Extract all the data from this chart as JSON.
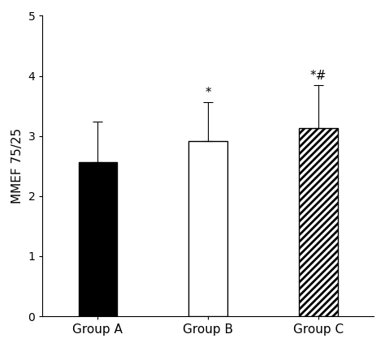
{
  "categories": [
    "Group A",
    "Group B",
    "Group C"
  ],
  "values": [
    2.56,
    2.91,
    3.13
  ],
  "errors": [
    0.68,
    0.65,
    0.72
  ],
  "bar_colors": [
    "black",
    "white",
    "white"
  ],
  "bar_hatches": [
    null,
    null,
    "////"
  ],
  "bar_edgecolors": [
    "black",
    "black",
    "black"
  ],
  "annotations": [
    "",
    "*",
    "*#"
  ],
  "ylabel": "MMEF 75/25",
  "ylim": [
    0,
    5
  ],
  "yticks": [
    0,
    1,
    2,
    3,
    4,
    5
  ],
  "annotation_fontsize": 11,
  "bar_width": 0.35,
  "capsize": 4,
  "hatch_linewidth": 2.0
}
